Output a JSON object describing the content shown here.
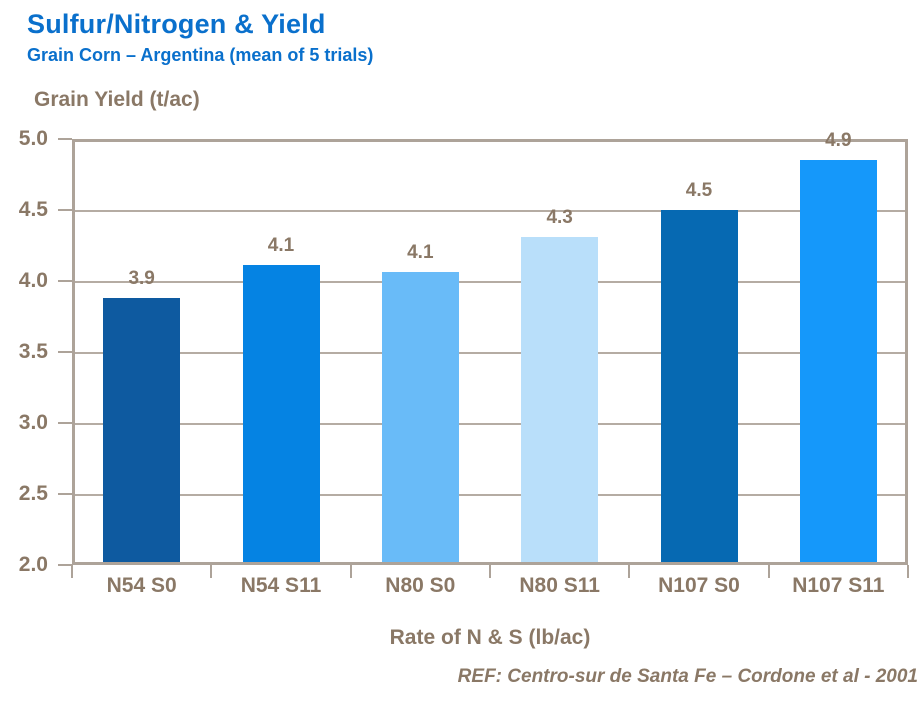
{
  "header": {
    "title": "Sulfur/Nitrogen & Yield",
    "subtitle": "Grain Corn – Argentina (mean of 5 trials)"
  },
  "chart_data": {
    "type": "bar",
    "title": "Sulfur/Nitrogen & Yield",
    "subtitle": "Grain Corn – Argentina (mean of 5 trials)",
    "ylabel": "Grain Yield (t/ac)",
    "xlabel": "Rate of N & S (lb/ac)",
    "categories": [
      "N54 S0",
      "N54 S11",
      "N80 S0",
      "N80 S11",
      "N107 S0",
      "N107 S11"
    ],
    "values": [
      3.9,
      4.1,
      4.1,
      4.3,
      4.5,
      4.9
    ],
    "value_labels": [
      "3.9",
      "4.1",
      "4.1",
      "4.3",
      "4.5",
      "4.9"
    ],
    "plotted_values": [
      3.88,
      4.11,
      4.06,
      4.31,
      4.5,
      4.85
    ],
    "bar_colors": [
      "#0E5AA0",
      "#0583E3",
      "#69BBF8",
      "#B9DFFA",
      "#0669B2",
      "#1598FA"
    ],
    "ylim": [
      2.0,
      5.0
    ],
    "ytick_step": 0.5,
    "ytick_labels": [
      "2.0",
      "2.5",
      "3.0",
      "3.5",
      "4.0",
      "4.5",
      "5.0"
    ],
    "grid": true,
    "legend": false,
    "reference": "REF: Centro-sur de Santa Fe – Cordone et al - 2001"
  },
  "colors": {
    "title_blue": "#0A70CC",
    "text_brown": "#8A7866",
    "axis_line": "#ADA399",
    "gridline": "#B5ACA3"
  }
}
